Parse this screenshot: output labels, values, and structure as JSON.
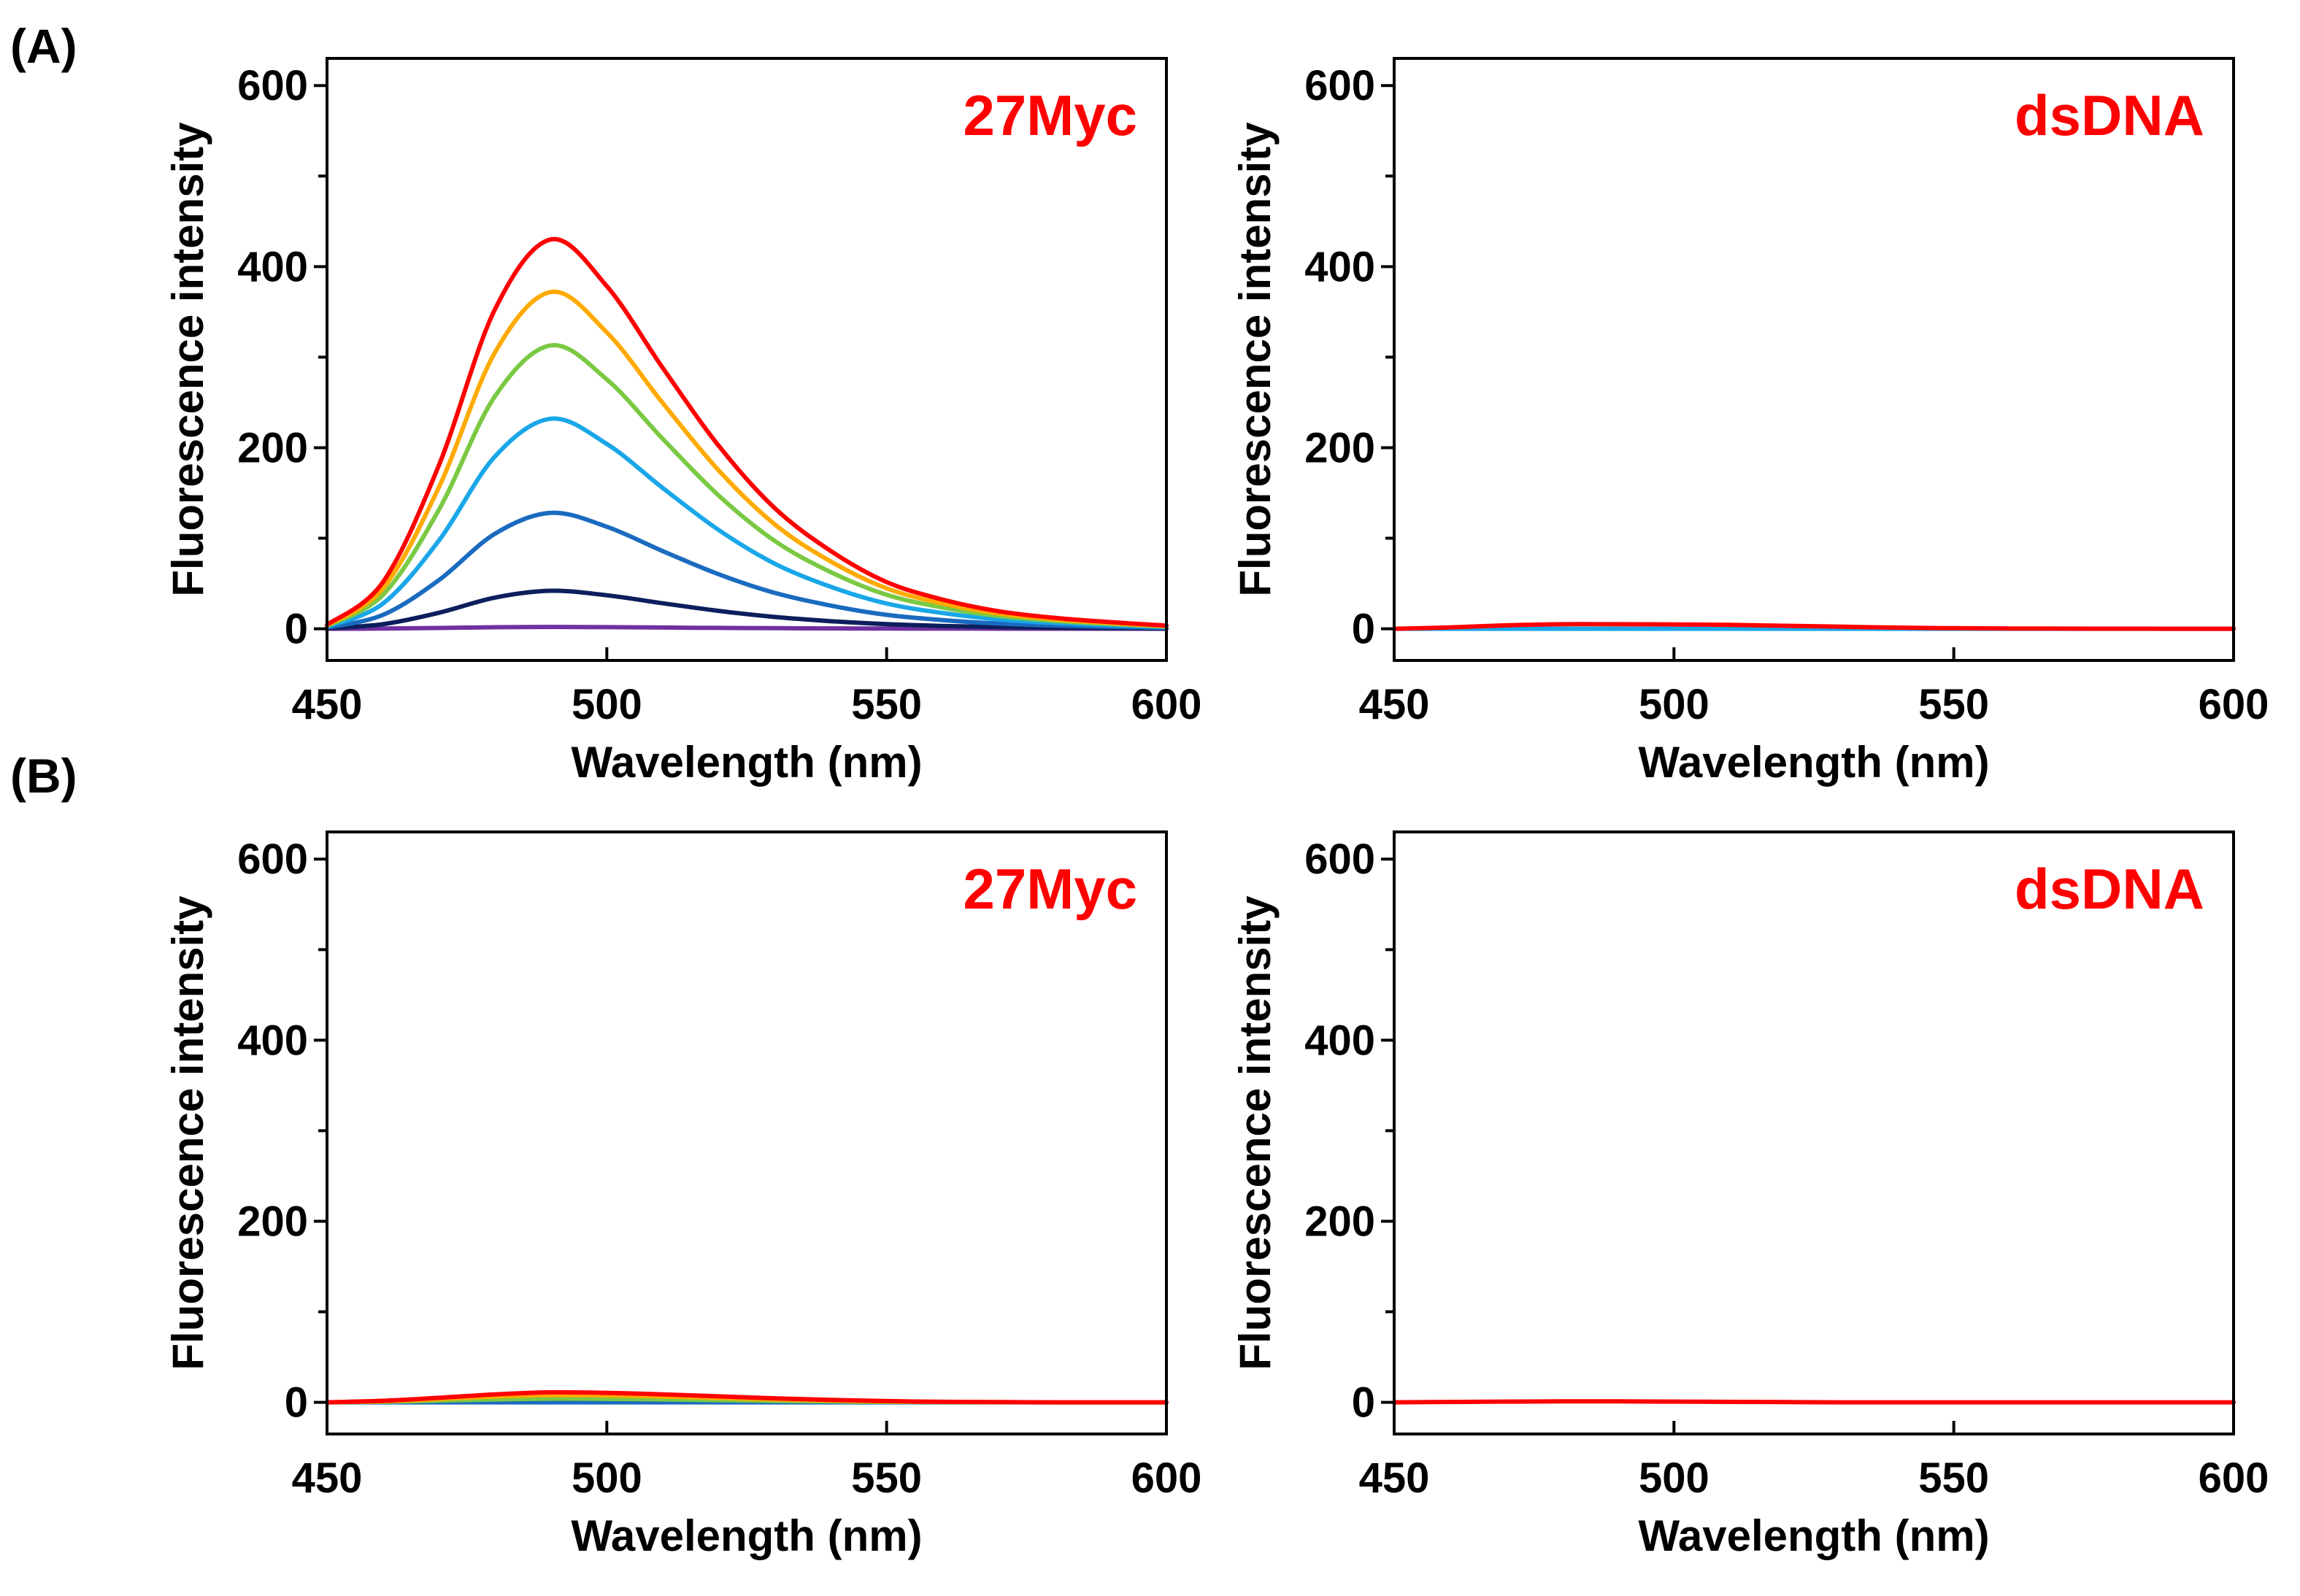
{
  "figure": {
    "panel_labels": [
      "(A)",
      "(B)"
    ]
  },
  "chart_data": [
    {
      "type": "line",
      "panel": "(A)",
      "annotation": "27Myc",
      "xlabel": "Wavelength (nm)",
      "ylabel": "Fluorescence intensity",
      "xlim": [
        450,
        600
      ],
      "ylim": [
        -35,
        630
      ],
      "xticks": [
        450,
        500,
        550,
        600
      ],
      "yticks": [
        0,
        200,
        400,
        600
      ],
      "curve_shape": {
        "x": [
          450,
          460,
          470,
          480,
          490,
          500,
          510,
          520,
          530,
          540,
          550,
          560,
          570,
          580,
          590,
          600
        ],
        "relative": [
          0.01,
          0.12,
          0.42,
          0.82,
          1.0,
          0.88,
          0.67,
          0.47,
          0.31,
          0.2,
          0.12,
          0.075,
          0.045,
          0.028,
          0.017,
          0.008
        ]
      },
      "series": [
        {
          "name": "violet",
          "color": "#7030a0",
          "peak": 2
        },
        {
          "name": "navy",
          "color": "#0c1f5c",
          "peak": 42
        },
        {
          "name": "blue",
          "color": "#1a6bbf",
          "peak": 128
        },
        {
          "name": "light-blue",
          "color": "#1aa7e8",
          "peak": 232
        },
        {
          "name": "green",
          "color": "#7ac943",
          "peak": 313
        },
        {
          "name": "orange",
          "color": "#ffaa00",
          "peak": 372
        },
        {
          "name": "red",
          "color": "#ff0000",
          "peak": 430
        }
      ]
    },
    {
      "type": "line",
      "panel": "(A)",
      "annotation": "dsDNA",
      "xlabel": "Wavelength (nm)",
      "ylabel": "Fluorescence intensity",
      "xlim": [
        450,
        600
      ],
      "ylim": [
        -35,
        630
      ],
      "xticks": [
        450,
        500,
        550,
        600
      ],
      "yticks": [
        0,
        200,
        400,
        600
      ],
      "curve_shape": {
        "x": [
          450,
          460,
          470,
          480,
          490,
          500,
          510,
          520,
          530,
          540,
          550,
          560,
          570,
          580,
          590,
          600
        ],
        "relative": [
          0.0,
          0.3,
          0.75,
          1.0,
          1.0,
          0.95,
          0.85,
          0.65,
          0.45,
          0.25,
          0.12,
          0.06,
          0.03,
          0.01,
          0.0,
          0.0
        ]
      },
      "series": [
        {
          "name": "blue",
          "color": "#1aa7e8",
          "peak": 0
        },
        {
          "name": "red",
          "color": "#ff0000",
          "peak": 5
        }
      ]
    },
    {
      "type": "line",
      "panel": "(B)",
      "annotation": "27Myc",
      "xlabel": "Wavelength (nm)",
      "ylabel": "Fluorescence intensity",
      "xlim": [
        450,
        600
      ],
      "ylim": [
        -35,
        630
      ],
      "xticks": [
        450,
        500,
        550,
        600
      ],
      "yticks": [
        0,
        200,
        400,
        600
      ],
      "curve_shape": {
        "x": [
          450,
          460,
          470,
          480,
          490,
          500,
          510,
          520,
          530,
          540,
          550,
          560,
          570,
          580,
          590,
          600
        ],
        "relative": [
          0.0,
          0.15,
          0.45,
          0.8,
          1.0,
          0.95,
          0.8,
          0.6,
          0.4,
          0.25,
          0.12,
          0.05,
          0.02,
          0.0,
          0.0,
          0.0
        ]
      },
      "series": [
        {
          "name": "blue",
          "color": "#1a6bbf",
          "peak": 0
        },
        {
          "name": "green",
          "color": "#7ac943",
          "peak": 4
        },
        {
          "name": "orange",
          "color": "#ffaa00",
          "peak": 8
        },
        {
          "name": "red",
          "color": "#ff0000",
          "peak": 11
        }
      ]
    },
    {
      "type": "line",
      "panel": "(B)",
      "annotation": "dsDNA",
      "xlabel": "Wavelength (nm)",
      "ylabel": "Fluorescence intensity",
      "xlim": [
        450,
        600
      ],
      "ylim": [
        -35,
        630
      ],
      "xticks": [
        450,
        500,
        550,
        600
      ],
      "yticks": [
        0,
        200,
        400,
        600
      ],
      "curve_shape": {
        "x": [
          450,
          460,
          470,
          480,
          490,
          500,
          510,
          520,
          530,
          540,
          550,
          560,
          570,
          580,
          590,
          600
        ],
        "relative": [
          0.0,
          0.4,
          0.8,
          1.0,
          1.0,
          0.8,
          0.5,
          0.2,
          0.0,
          0.0,
          0.0,
          0.0,
          0.0,
          0.0,
          0.0,
          0.0
        ]
      },
      "series": [
        {
          "name": "red",
          "color": "#ff0000",
          "peak": 1
        }
      ]
    }
  ]
}
